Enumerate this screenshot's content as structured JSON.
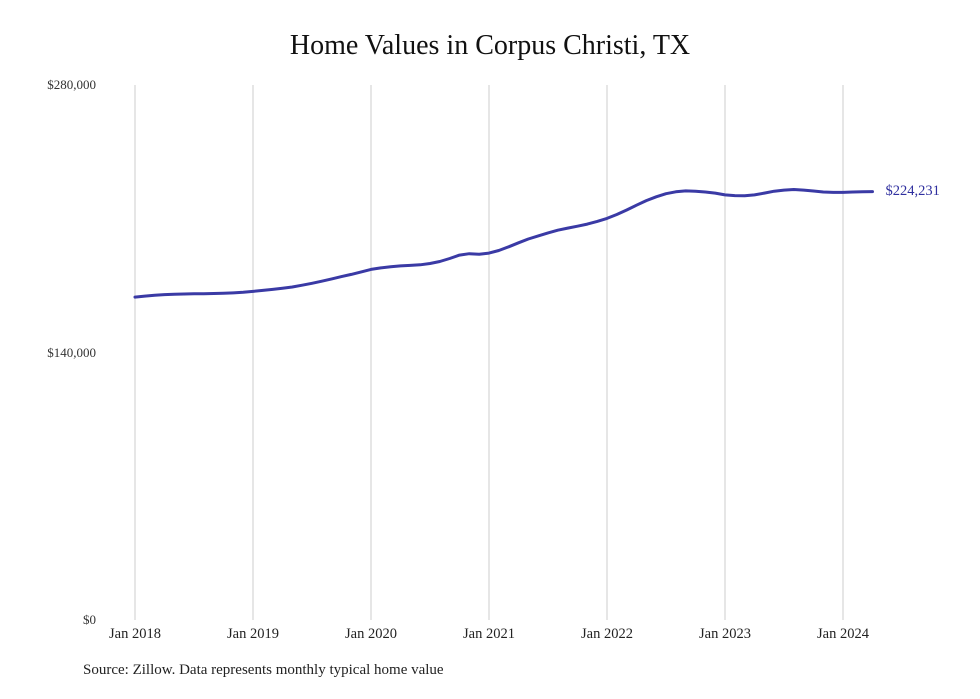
{
  "chart_data": {
    "type": "line",
    "title": "Home Values in Corpus Christi, TX",
    "xlabel": "",
    "ylabel": "",
    "ylim": [
      0,
      280000
    ],
    "grid": "vertical-only",
    "gridline_color": "#cccccc",
    "y_tick_labels": [
      "$280,000",
      "$140,000",
      "$0"
    ],
    "x_tick_labels": [
      "Jan 2018",
      "Jan 2019",
      "Jan 2020",
      "Jan 2021",
      "Jan 2022",
      "Jan 2023",
      "Jan 2024"
    ],
    "end_label": "$224,231",
    "end_label_color": "#2f2f9f",
    "source": "Source: Zillow. Data represents monthly typical home value",
    "series": [
      {
        "name": "Monthly typical home value",
        "color": "#3a3aa5",
        "start_month": "Jan 2018",
        "months_per_point": 1,
        "values": [
          169000,
          169500,
          170000,
          170300,
          170500,
          170600,
          170700,
          170800,
          170900,
          171000,
          171200,
          171500,
          172000,
          172500,
          173000,
          173600,
          174300,
          175200,
          176200,
          177300,
          178500,
          179700,
          180900,
          182200,
          183500,
          184300,
          184900,
          185300,
          185600,
          185900,
          186600,
          187600,
          189200,
          191000,
          191700,
          191400,
          192000,
          193400,
          195300,
          197400,
          199400,
          201000,
          202600,
          204000,
          205100,
          206100,
          207200,
          208600,
          210200,
          212200,
          214600,
          217100,
          219500,
          221500,
          223100,
          224100,
          224600,
          224400,
          224000,
          223400,
          222500,
          222100,
          222000,
          222500,
          223400,
          224400,
          225000,
          225300,
          225000,
          224500,
          224000,
          223800,
          223800,
          224000,
          224100,
          224231
        ]
      }
    ]
  }
}
